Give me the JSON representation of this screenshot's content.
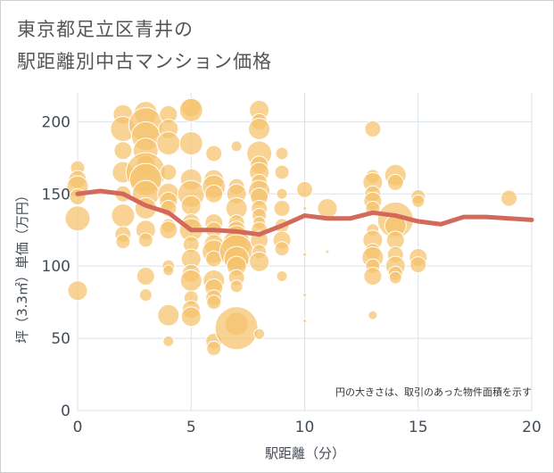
{
  "title_line1": "東京都足立区青井の",
  "title_line2": "駅距離別中古マンション価格",
  "colors": {
    "bubble_fill": "#f5c26b",
    "bubble_stroke": "#ffffff",
    "line": "#d2695a",
    "grid": "#d9e2ea",
    "plot_bg": "#ffffff"
  },
  "chart_data": {
    "type": "scatter",
    "xlabel": "駅距離（分）",
    "ylabel": "坪（3.3㎡）単価（万円）",
    "note": "円の大きさは、取引のあった物件面積を示す",
    "xlim": [
      0,
      20
    ],
    "ylim": [
      0,
      220
    ],
    "x_ticks": [
      0,
      5,
      10,
      15,
      20
    ],
    "y_ticks": [
      0,
      50,
      100,
      150,
      200
    ],
    "grid": true,
    "bubbles": [
      {
        "x": 0,
        "y": 168,
        "s": 8
      },
      {
        "x": 0,
        "y": 160,
        "s": 10
      },
      {
        "x": 0,
        "y": 155,
        "s": 12
      },
      {
        "x": 0,
        "y": 148,
        "s": 9
      },
      {
        "x": 0,
        "y": 133,
        "s": 14
      },
      {
        "x": 0,
        "y": 83,
        "s": 11
      },
      {
        "x": 2,
        "y": 205,
        "s": 11
      },
      {
        "x": 2,
        "y": 195,
        "s": 14
      },
      {
        "x": 2,
        "y": 180,
        "s": 10
      },
      {
        "x": 2,
        "y": 165,
        "s": 12
      },
      {
        "x": 2,
        "y": 150,
        "s": 9
      },
      {
        "x": 2,
        "y": 135,
        "s": 13
      },
      {
        "x": 2,
        "y": 122,
        "s": 9
      },
      {
        "x": 2,
        "y": 117,
        "s": 8
      },
      {
        "x": 3,
        "y": 206,
        "s": 13
      },
      {
        "x": 3,
        "y": 198,
        "s": 19
      },
      {
        "x": 3,
        "y": 190,
        "s": 16
      },
      {
        "x": 3,
        "y": 180,
        "s": 14
      },
      {
        "x": 3,
        "y": 170,
        "s": 11
      },
      {
        "x": 3,
        "y": 165,
        "s": 22
      },
      {
        "x": 3,
        "y": 160,
        "s": 18
      },
      {
        "x": 3,
        "y": 150,
        "s": 15
      },
      {
        "x": 3,
        "y": 140,
        "s": 12
      },
      {
        "x": 3,
        "y": 125,
        "s": 11
      },
      {
        "x": 3,
        "y": 118,
        "s": 8
      },
      {
        "x": 3,
        "y": 93,
        "s": 10
      },
      {
        "x": 3,
        "y": 80,
        "s": 7
      },
      {
        "x": 4,
        "y": 205,
        "s": 10
      },
      {
        "x": 4,
        "y": 195,
        "s": 11
      },
      {
        "x": 4,
        "y": 185,
        "s": 13
      },
      {
        "x": 4,
        "y": 165,
        "s": 9
      },
      {
        "x": 4,
        "y": 150,
        "s": 12
      },
      {
        "x": 4,
        "y": 145,
        "s": 10
      },
      {
        "x": 4,
        "y": 140,
        "s": 9
      },
      {
        "x": 4,
        "y": 128,
        "s": 8
      },
      {
        "x": 4,
        "y": 125,
        "s": 10
      },
      {
        "x": 4,
        "y": 100,
        "s": 7
      },
      {
        "x": 4,
        "y": 97,
        "s": 6
      },
      {
        "x": 4,
        "y": 66,
        "s": 12
      },
      {
        "x": 4,
        "y": 48,
        "s": 6
      },
      {
        "x": 5,
        "y": 210,
        "s": 11
      },
      {
        "x": 5,
        "y": 208,
        "s": 13
      },
      {
        "x": 5,
        "y": 185,
        "s": 13
      },
      {
        "x": 5,
        "y": 160,
        "s": 12
      },
      {
        "x": 5,
        "y": 150,
        "s": 15
      },
      {
        "x": 5,
        "y": 142,
        "s": 11
      },
      {
        "x": 5,
        "y": 130,
        "s": 10
      },
      {
        "x": 5,
        "y": 125,
        "s": 13
      },
      {
        "x": 5,
        "y": 115,
        "s": 9
      },
      {
        "x": 5,
        "y": 105,
        "s": 11
      },
      {
        "x": 5,
        "y": 95,
        "s": 10
      },
      {
        "x": 5,
        "y": 90,
        "s": 12
      },
      {
        "x": 5,
        "y": 78,
        "s": 8
      },
      {
        "x": 5,
        "y": 70,
        "s": 10
      },
      {
        "x": 5,
        "y": 65,
        "s": 11
      },
      {
        "x": 6,
        "y": 178,
        "s": 9
      },
      {
        "x": 6,
        "y": 160,
        "s": 11
      },
      {
        "x": 6,
        "y": 155,
        "s": 13
      },
      {
        "x": 6,
        "y": 150,
        "s": 10
      },
      {
        "x": 6,
        "y": 130,
        "s": 10
      },
      {
        "x": 6,
        "y": 125,
        "s": 9
      },
      {
        "x": 6,
        "y": 115,
        "s": 11
      },
      {
        "x": 6,
        "y": 110,
        "s": 13
      },
      {
        "x": 6,
        "y": 105,
        "s": 9
      },
      {
        "x": 6,
        "y": 90,
        "s": 12
      },
      {
        "x": 6,
        "y": 85,
        "s": 10
      },
      {
        "x": 6,
        "y": 78,
        "s": 9
      },
      {
        "x": 6,
        "y": 75,
        "s": 8
      },
      {
        "x": 6,
        "y": 48,
        "s": 9
      },
      {
        "x": 6,
        "y": 43,
        "s": 8
      },
      {
        "x": 7,
        "y": 183,
        "s": 6
      },
      {
        "x": 7,
        "y": 155,
        "s": 9
      },
      {
        "x": 7,
        "y": 150,
        "s": 11
      },
      {
        "x": 7,
        "y": 140,
        "s": 12
      },
      {
        "x": 7,
        "y": 130,
        "s": 9
      },
      {
        "x": 7,
        "y": 125,
        "s": 10
      },
      {
        "x": 7,
        "y": 120,
        "s": 13
      },
      {
        "x": 7,
        "y": 115,
        "s": 16
      },
      {
        "x": 7,
        "y": 110,
        "s": 19
      },
      {
        "x": 7,
        "y": 105,
        "s": 14
      },
      {
        "x": 7,
        "y": 100,
        "s": 11
      },
      {
        "x": 7,
        "y": 92,
        "s": 9
      },
      {
        "x": 7,
        "y": 86,
        "s": 7
      },
      {
        "x": 7,
        "y": 60,
        "s": 13
      },
      {
        "x": 7,
        "y": 57,
        "s": 24
      },
      {
        "x": 8,
        "y": 208,
        "s": 11
      },
      {
        "x": 8,
        "y": 200,
        "s": 9
      },
      {
        "x": 8,
        "y": 195,
        "s": 12
      },
      {
        "x": 8,
        "y": 178,
        "s": 14
      },
      {
        "x": 8,
        "y": 170,
        "s": 10
      },
      {
        "x": 8,
        "y": 165,
        "s": 11
      },
      {
        "x": 8,
        "y": 158,
        "s": 9
      },
      {
        "x": 8,
        "y": 152,
        "s": 12
      },
      {
        "x": 8,
        "y": 148,
        "s": 10
      },
      {
        "x": 8,
        "y": 140,
        "s": 9
      },
      {
        "x": 8,
        "y": 135,
        "s": 8
      },
      {
        "x": 8,
        "y": 130,
        "s": 7
      },
      {
        "x": 8,
        "y": 125,
        "s": 9
      },
      {
        "x": 8,
        "y": 118,
        "s": 10
      },
      {
        "x": 8,
        "y": 110,
        "s": 8
      },
      {
        "x": 8,
        "y": 103,
        "s": 11
      },
      {
        "x": 8,
        "y": 53,
        "s": 6
      },
      {
        "x": 9,
        "y": 178,
        "s": 7
      },
      {
        "x": 9,
        "y": 165,
        "s": 8
      },
      {
        "x": 9,
        "y": 150,
        "s": 6
      },
      {
        "x": 9,
        "y": 140,
        "s": 9
      },
      {
        "x": 9,
        "y": 128,
        "s": 8
      },
      {
        "x": 9,
        "y": 118,
        "s": 10
      },
      {
        "x": 9,
        "y": 112,
        "s": 8
      },
      {
        "x": 9,
        "y": 93,
        "s": 6
      },
      {
        "x": 10,
        "y": 153,
        "s": 9
      },
      {
        "x": 10,
        "y": 140,
        "s": 2
      },
      {
        "x": 10,
        "y": 108,
        "s": 2
      },
      {
        "x": 10,
        "y": 80,
        "s": 2
      },
      {
        "x": 10,
        "y": 62,
        "s": 2
      },
      {
        "x": 11,
        "y": 140,
        "s": 11
      },
      {
        "x": 11,
        "y": 110,
        "s": 2
      },
      {
        "x": 13,
        "y": 195,
        "s": 9
      },
      {
        "x": 13,
        "y": 162,
        "s": 8
      },
      {
        "x": 13,
        "y": 158,
        "s": 11
      },
      {
        "x": 13,
        "y": 150,
        "s": 9
      },
      {
        "x": 13,
        "y": 145,
        "s": 10
      },
      {
        "x": 13,
        "y": 140,
        "s": 8
      },
      {
        "x": 13,
        "y": 125,
        "s": 7
      },
      {
        "x": 13,
        "y": 118,
        "s": 11
      },
      {
        "x": 13,
        "y": 110,
        "s": 9
      },
      {
        "x": 13,
        "y": 106,
        "s": 12
      },
      {
        "x": 13,
        "y": 100,
        "s": 8
      },
      {
        "x": 13,
        "y": 93,
        "s": 10
      },
      {
        "x": 13,
        "y": 66,
        "s": 5
      },
      {
        "x": 14,
        "y": 163,
        "s": 12
      },
      {
        "x": 14,
        "y": 158,
        "s": 9
      },
      {
        "x": 14,
        "y": 132,
        "s": 20
      },
      {
        "x": 14,
        "y": 128,
        "s": 12
      },
      {
        "x": 14,
        "y": 118,
        "s": 10
      },
      {
        "x": 14,
        "y": 108,
        "s": 9
      },
      {
        "x": 14,
        "y": 100,
        "s": 11
      },
      {
        "x": 14,
        "y": 95,
        "s": 8
      },
      {
        "x": 14,
        "y": 92,
        "s": 7
      },
      {
        "x": 15,
        "y": 148,
        "s": 8
      },
      {
        "x": 15,
        "y": 145,
        "s": 7
      },
      {
        "x": 15,
        "y": 106,
        "s": 10
      },
      {
        "x": 15,
        "y": 101,
        "s": 9
      },
      {
        "x": 19,
        "y": 147,
        "s": 9
      }
    ],
    "series": [
      {
        "x": [
          0,
          1,
          2,
          3,
          4,
          5,
          6,
          7,
          8,
          9,
          10,
          11,
          12,
          13,
          14,
          15,
          16,
          17,
          18,
          19,
          20
        ],
        "y": [
          150,
          152,
          150,
          142,
          137,
          125,
          125,
          124,
          122,
          128,
          135,
          133,
          133,
          137,
          135,
          131,
          129,
          134,
          134,
          133,
          132
        ]
      }
    ]
  }
}
